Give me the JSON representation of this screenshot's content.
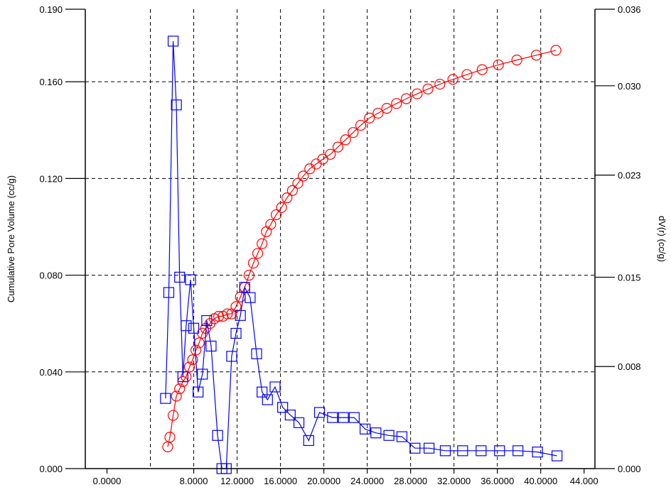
{
  "chart_data": {
    "type": "line",
    "title": "",
    "ylabel": "Cumulative Pore Volume (cc/g)",
    "y2label": "dV(r) (cc/g)",
    "xlabel": "",
    "xlim": [
      -2.0,
      45.0
    ],
    "ylim": [
      0.0,
      0.19
    ],
    "y2lim": [
      0.0,
      0.036
    ],
    "x_ticks": [
      "0.0000",
      "8.0000",
      "12.0000",
      "16.0000",
      "20.0000",
      "24.0000",
      "28.0000",
      "32.0000",
      "36.0000",
      "40.0000",
      "44.000"
    ],
    "x_tick_values": [
      0,
      8,
      12,
      16,
      20,
      24,
      28,
      32,
      36,
      40,
      44
    ],
    "y_ticks": [
      "0.000",
      "0.040",
      "0.080",
      "0.120",
      "0.160",
      "0.190"
    ],
    "y_tick_values": [
      0.0,
      0.04,
      0.08,
      0.12,
      0.16,
      0.19
    ],
    "y2_ticks": [
      "0.000",
      "0.008",
      "0.015",
      "0.023",
      "0.030",
      "0.036"
    ],
    "y2_tick_values": [
      0.0,
      0.008,
      0.015,
      0.023,
      0.03,
      0.036
    ],
    "grid": true,
    "vertical_grid_x": [
      4,
      8,
      12,
      16,
      20,
      24,
      28,
      32,
      36,
      40
    ],
    "series": [
      {
        "axis": "left",
        "marker": "circle",
        "color": "#ff0000",
        "x": [
          5.6,
          5.8,
          6.1,
          6.4,
          6.7,
          7.0,
          7.3,
          7.6,
          7.9,
          8.2,
          8.5,
          8.8,
          9.1,
          9.5,
          9.9,
          10.3,
          10.7,
          11.1,
          11.5,
          11.9,
          12.3,
          12.7,
          13.1,
          13.5,
          13.9,
          14.3,
          14.7,
          15.1,
          15.6,
          16.1,
          16.6,
          17.1,
          17.6,
          18.1,
          18.7,
          19.3,
          19.9,
          20.6,
          21.3,
          22.0,
          22.7,
          23.4,
          24.2,
          25.0,
          25.8,
          26.7,
          27.6,
          28.6,
          29.6,
          30.7,
          31.9,
          33.2,
          34.6,
          36.1,
          37.8,
          39.6,
          41.4
        ],
        "values": [
          0.009,
          0.013,
          0.022,
          0.03,
          0.033,
          0.036,
          0.038,
          0.042,
          0.045,
          0.049,
          0.052,
          0.056,
          0.058,
          0.06,
          0.062,
          0.063,
          0.063,
          0.064,
          0.064,
          0.067,
          0.071,
          0.075,
          0.08,
          0.085,
          0.089,
          0.093,
          0.098,
          0.101,
          0.105,
          0.108,
          0.112,
          0.115,
          0.118,
          0.121,
          0.124,
          0.126,
          0.128,
          0.13,
          0.133,
          0.136,
          0.139,
          0.142,
          0.145,
          0.147,
          0.149,
          0.151,
          0.153,
          0.155,
          0.157,
          0.159,
          0.161,
          0.163,
          0.165,
          0.167,
          0.169,
          0.171,
          0.173
        ]
      },
      {
        "axis": "right",
        "marker": "square",
        "color": "#0000ff",
        "x": [
          5.4,
          5.7,
          6.1,
          6.4,
          6.7,
          7.0,
          7.3,
          7.7,
          8.0,
          8.4,
          8.8,
          9.2,
          9.6,
          10.2,
          10.6,
          11.0,
          11.5,
          11.9,
          12.3,
          12.7,
          13.2,
          13.8,
          14.3,
          14.8,
          15.5,
          16.2,
          16.9,
          17.7,
          18.6,
          19.6,
          20.8,
          21.8,
          22.8,
          23.8,
          24.8,
          26.0,
          27.2,
          28.4,
          29.7,
          31.2,
          32.8,
          34.5,
          36.2,
          37.9,
          39.7,
          41.5
        ],
        "values": [
          0.0055,
          0.0138,
          0.0335,
          0.0285,
          0.015,
          0.0072,
          0.0112,
          0.0148,
          0.011,
          0.006,
          0.0074,
          0.0116,
          0.0096,
          0.0026,
          0.0,
          0.0,
          0.0088,
          0.0106,
          0.012,
          0.0142,
          0.0134,
          0.009,
          0.006,
          0.0054,
          0.0064,
          0.0048,
          0.0042,
          0.0036,
          0.0022,
          0.0044,
          0.004,
          0.004,
          0.004,
          0.0031,
          0.0028,
          0.0026,
          0.0025,
          0.0016,
          0.0016,
          0.0014,
          0.0014,
          0.0014,
          0.0014,
          0.0014,
          0.0013,
          0.001
        ]
      }
    ]
  }
}
